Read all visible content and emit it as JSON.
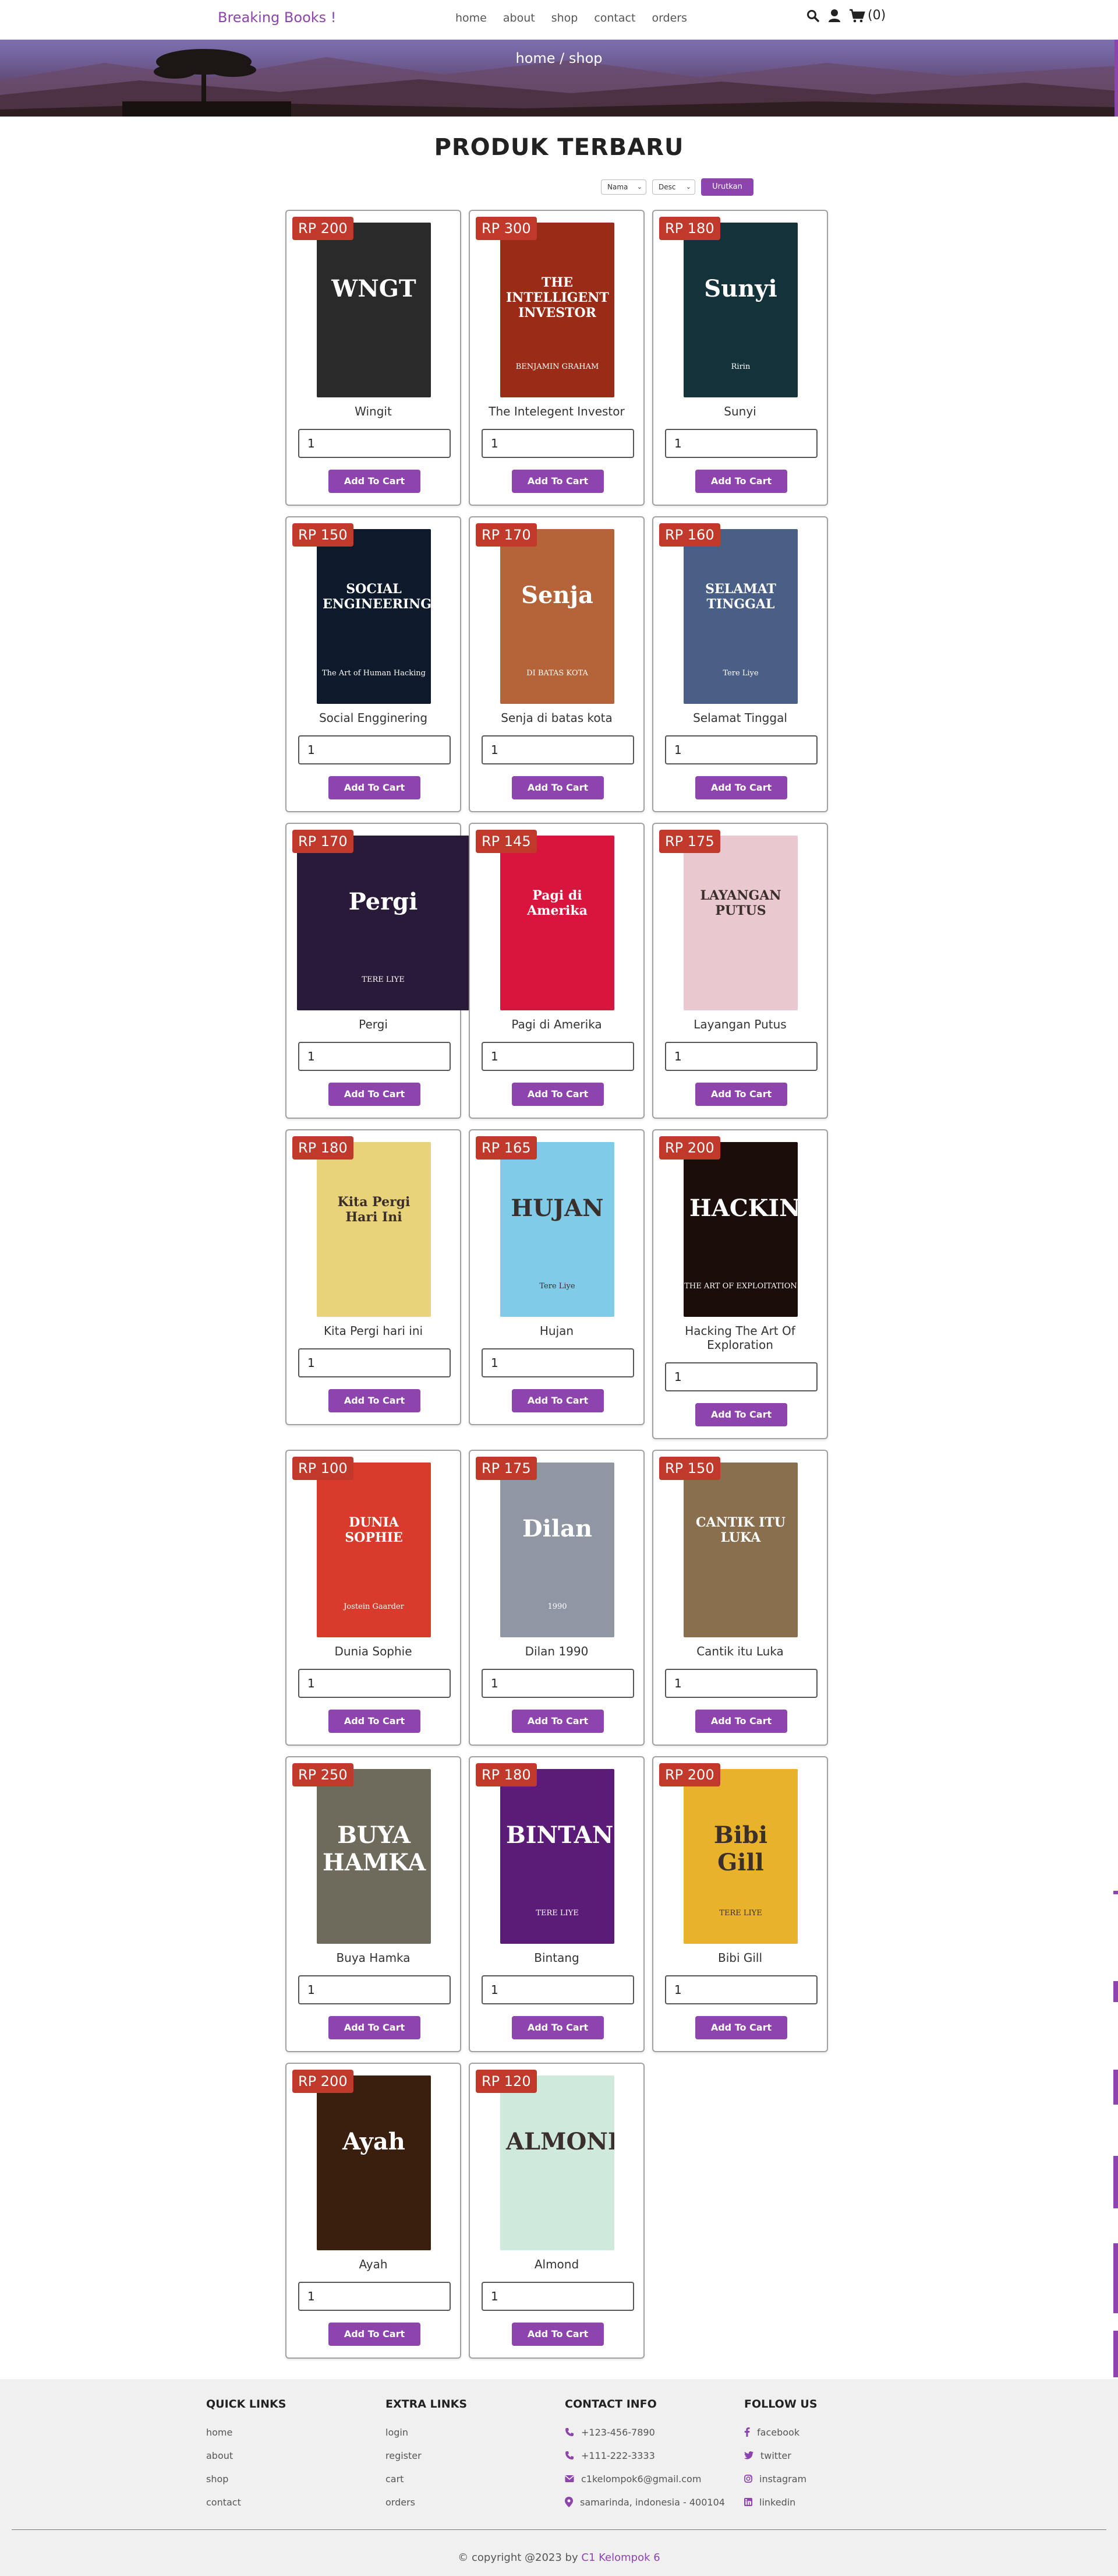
{
  "header": {
    "logo": "Breaking Books !",
    "nav": [
      "home",
      "about",
      "shop",
      "contact",
      "orders"
    ],
    "cart_count": "(0)",
    "icons": [
      "search-icon",
      "user-icon",
      "cart-icon"
    ]
  },
  "banner": {
    "breadcrumb": "home / shop"
  },
  "section_title": "PRODUK TERBARU",
  "sort": {
    "field": "Nama",
    "order": "Desc",
    "button": "Urutkan"
  },
  "products": [
    {
      "price": "RP 200",
      "name": "Wingit",
      "qty": "1",
      "button": "Add To Cart",
      "cover_text": "WNGT",
      "cover_color": "#2a2a2a"
    },
    {
      "price": "RP 300",
      "name": "The Intelegent Investor",
      "qty": "1",
      "button": "Add To Cart",
      "cover_text": "THE INTELLIGENT INVESTOR",
      "cover_sub": "BENJAMIN GRAHAM",
      "cover_color": "#9a2b16"
    },
    {
      "price": "RP 180",
      "name": "Sunyi",
      "qty": "1",
      "button": "Add To Cart",
      "cover_text": "Sunyi",
      "cover_sub": "Ririn",
      "cover_color": "#14323a"
    },
    {
      "price": "RP 150",
      "name": "Social Engginering",
      "qty": "1",
      "button": "Add To Cart",
      "cover_text": "SOCIAL ENGINEERING",
      "cover_sub": "The Art of Human Hacking",
      "cover_color": "#0e1a2b"
    },
    {
      "price": "RP 170",
      "name": "Senja di batas kota",
      "qty": "1",
      "button": "Add To Cart",
      "cover_text": "Senja",
      "cover_sub": "DI BATAS KOTA",
      "cover_color": "#b5643a"
    },
    {
      "price": "RP 160",
      "name": "Selamat Tinggal",
      "qty": "1",
      "button": "Add To Cart",
      "cover_text": "SELAMAT TINGGAL",
      "cover_sub": "Tere Liye",
      "cover_color": "#4a5f86"
    },
    {
      "price": "RP 170",
      "name": "Pergi",
      "qty": "1",
      "button": "Add To Cart",
      "cover_text": "Pergi",
      "cover_sub": "TERE LIYE",
      "cover_color": "#2a1a3a"
    },
    {
      "price": "RP 145",
      "name": "Pagi di Amerika",
      "qty": "1",
      "button": "Add To Cart",
      "cover_text": "Pagi di Amerika",
      "cover_color": "#d8163d"
    },
    {
      "price": "RP 175",
      "name": "Layangan Putus",
      "qty": "1",
      "button": "Add To Cart",
      "cover_text": "LAYANGAN PUTUS",
      "cover_color": "#e9c9cf"
    },
    {
      "price": "RP 180",
      "name": "Kita Pergi hari ini",
      "qty": "1",
      "button": "Add To Cart",
      "cover_text": "Kita Pergi Hari Ini",
      "cover_color": "#e8d27a"
    },
    {
      "price": "RP 165",
      "name": "Hujan",
      "qty": "1",
      "button": "Add To Cart",
      "cover_text": "HUJAN",
      "cover_sub": "Tere Liye",
      "cover_color": "#7fcbe8"
    },
    {
      "price": "RP 200",
      "name": "Hacking The Art Of Exploration",
      "qty": "1",
      "button": "Add To Cart",
      "cover_text": "HACKING",
      "cover_sub": "THE ART OF EXPLOITATION",
      "cover_color": "#1a0d0a"
    },
    {
      "price": "RP 100",
      "name": "Dunia Sophie",
      "qty": "1",
      "button": "Add To Cart",
      "cover_text": "DUNIA SOPHIE",
      "cover_sub": "Jostein Gaarder",
      "cover_color": "#d83a2c"
    },
    {
      "price": "RP 175",
      "name": "Dilan 1990",
      "qty": "1",
      "button": "Add To Cart",
      "cover_text": "Dilan",
      "cover_sub": "1990",
      "cover_color": "#8e97a3"
    },
    {
      "price": "RP 150",
      "name": "Cantik itu Luka",
      "qty": "1",
      "button": "Add To Cart",
      "cover_text": "CANTIK ITU LUKA",
      "cover_color": "#8a6f4f"
    },
    {
      "price": "RP 250",
      "name": "Buya Hamka",
      "qty": "1",
      "button": "Add To Cart",
      "cover_text": "BUYA HAMKA",
      "cover_color": "#6e6a5c"
    },
    {
      "price": "RP 180",
      "name": "Bintang",
      "qty": "1",
      "button": "Add To Cart",
      "cover_text": "BINTANG",
      "cover_sub": "TERE LIYE",
      "cover_color": "#5b1c78"
    },
    {
      "price": "RP 200",
      "name": "Bibi Gill",
      "qty": "1",
      "button": "Add To Cart",
      "cover_text": "Bibi Gill",
      "cover_sub": "TERE LIYE",
      "cover_color": "#e8b22b"
    },
    {
      "price": "RP 200",
      "name": "Ayah",
      "qty": "1",
      "button": "Add To Cart",
      "cover_text": "Ayah",
      "cover_color": "#3a1f0f"
    },
    {
      "price": "RP 120",
      "name": "Almond",
      "qty": "1",
      "button": "Add To Cart",
      "cover_text": "ALMOND",
      "cover_color": "#cfe9dc"
    }
  ],
  "footer": {
    "quick_links": {
      "title": "QUICK LINKS",
      "items": [
        "home",
        "about",
        "shop",
        "contact"
      ]
    },
    "extra_links": {
      "title": "EXTRA LINKS",
      "items": [
        "login",
        "register",
        "cart",
        "orders"
      ]
    },
    "contact_info": {
      "title": "CONTACT INFO",
      "items": [
        "+123-456-7890",
        "+111-222-3333",
        "c1kelompok6@gmail.com",
        "samarinda, indonesia - 400104"
      ]
    },
    "follow_us": {
      "title": "FOLLOW US",
      "items": [
        "facebook",
        "twitter",
        "instagram",
        "linkedin"
      ]
    },
    "copyright_prefix": "© copyright @2023 by",
    "copyright_brand": "C1 Kelompok 6"
  },
  "colors": {
    "accent": "#8e44ad",
    "price_badge": "#c0392b"
  }
}
